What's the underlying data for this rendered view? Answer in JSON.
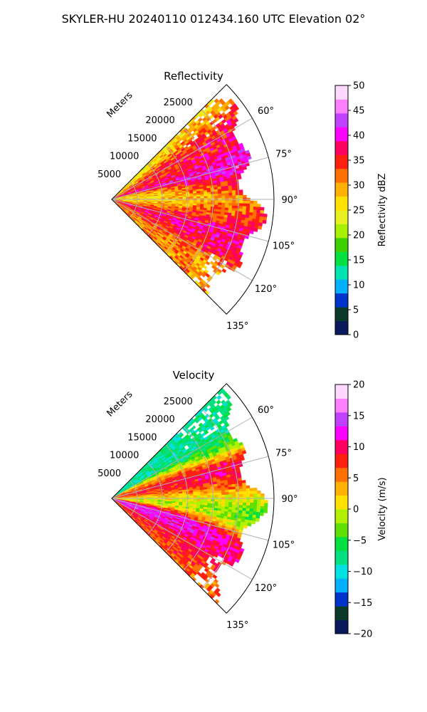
{
  "figure_title": "SKYLER-HU  20240110  012434.160 UTC Elevation 02°",
  "range_unit_label": "Meters",
  "colors": {
    "grid": "#b0b0b0",
    "axis": "#000000",
    "background": "#ffffff"
  },
  "chart_data": [
    {
      "type": "heatmap",
      "subtype": "polar-sector (PPI radar scan)",
      "title": "Reflectivity",
      "theta_ticks_deg": [
        60,
        75,
        90,
        105,
        120,
        135
      ],
      "theta_tick_labels": [
        "60°",
        "75°",
        "90°",
        "105°",
        "120°",
        "135°"
      ],
      "theta_range_deg": [
        45,
        135
      ],
      "r_ticks": [
        5000,
        10000,
        15000,
        20000,
        25000
      ],
      "r_tick_labels": [
        "5000",
        "10000",
        "15000",
        "20000",
        "25000"
      ],
      "r_max": 32000,
      "grid": true,
      "colorbar": {
        "label": "Reflectivity dBZ",
        "min": 0,
        "max": 50,
        "ticks": [
          0,
          5,
          10,
          15,
          20,
          25,
          30,
          35,
          40,
          45,
          50
        ],
        "tick_labels": [
          "0",
          "5",
          "10",
          "15",
          "20",
          "25",
          "30",
          "35",
          "40",
          "45",
          "50"
        ],
        "colorscale": [
          "#0a1a5c",
          "#0b3a2a",
          "#0033cc",
          "#00b0ff",
          "#00e0b0",
          "#00e040",
          "#40d000",
          "#a8f000",
          "#e8f020",
          "#ffe000",
          "#ffb000",
          "#ff7000",
          "#ff2010",
          "#ff0060",
          "#ff00ff",
          "#c040ff",
          "#ff80ff",
          "#ffd8ff"
        ]
      },
      "field_description": "Sector mostly 25-35 dBZ with band of 35-45 dBZ near ranges 20000-27000 m; light 15-25 dBZ near north edge",
      "values": [
        {
          "azimuth": 50,
          "range": 22000,
          "value": 25
        },
        {
          "azimuth": 55,
          "range": 25000,
          "value": 38
        },
        {
          "azimuth": 60,
          "range": 26000,
          "value": 37
        },
        {
          "azimuth": 65,
          "range": 22000,
          "value": 33
        },
        {
          "azimuth": 70,
          "range": 24000,
          "value": 41
        },
        {
          "azimuth": 75,
          "range": 26000,
          "value": 42
        },
        {
          "azimuth": 80,
          "range": 25000,
          "value": 40
        },
        {
          "azimuth": 85,
          "range": 18000,
          "value": 29
        },
        {
          "azimuth": 90,
          "range": 10000,
          "value": 26
        },
        {
          "azimuth": 95,
          "range": 15000,
          "value": 30
        },
        {
          "azimuth": 100,
          "range": 22000,
          "value": 35
        },
        {
          "azimuth": 105,
          "range": 18000,
          "value": 37
        },
        {
          "azimuth": 110,
          "range": 20000,
          "value": 40
        },
        {
          "azimuth": 115,
          "range": 15000,
          "value": 36
        },
        {
          "azimuth": 120,
          "range": 12000,
          "value": 33
        },
        {
          "azimuth": 125,
          "range": 20000,
          "value": 30
        },
        {
          "azimuth": 130,
          "range": 14000,
          "value": 31
        }
      ]
    },
    {
      "type": "heatmap",
      "subtype": "polar-sector (PPI radar scan)",
      "title": "Velocity",
      "theta_ticks_deg": [
        60,
        75,
        90,
        105,
        120,
        135
      ],
      "theta_tick_labels": [
        "60°",
        "75°",
        "90°",
        "105°",
        "120°",
        "135°"
      ],
      "theta_range_deg": [
        45,
        135
      ],
      "r_ticks": [
        5000,
        10000,
        15000,
        20000,
        25000
      ],
      "r_tick_labels": [
        "5000",
        "10000",
        "15000",
        "20000",
        "25000"
      ],
      "r_max": 32000,
      "grid": true,
      "colorbar": {
        "label": "Velocity (m/s)",
        "min": -20,
        "max": 20,
        "ticks": [
          -20,
          -15,
          -10,
          -5,
          0,
          5,
          10,
          15,
          20
        ],
        "tick_labels": [
          "−20",
          "−15",
          "−10",
          "−5",
          "0",
          "5",
          "10",
          "15",
          "20"
        ],
        "colorscale": [
          "#0a1a5c",
          "#0b3a2a",
          "#0033cc",
          "#00b0ff",
          "#00e0e0",
          "#00e080",
          "#00e040",
          "#60e000",
          "#b0f000",
          "#ffe000",
          "#ffb000",
          "#ff7000",
          "#ff2010",
          "#ff0060",
          "#ff00ff",
          "#c040ff",
          "#ff80ff",
          "#ffd8ff"
        ]
      },
      "field_description": "Inbound -10 to -5 m/s near northern edge, outbound 5-15 m/s along 75-90° band and south of 105°, near zero along 90-100°",
      "values": [
        {
          "azimuth": 50,
          "range": 20000,
          "value": -8
        },
        {
          "azimuth": 55,
          "range": 26000,
          "value": -6
        },
        {
          "azimuth": 60,
          "range": 20000,
          "value": -10
        },
        {
          "azimuth": 65,
          "range": 22000,
          "value": -4
        },
        {
          "azimuth": 70,
          "range": 14000,
          "value": 6
        },
        {
          "azimuth": 75,
          "range": 22000,
          "value": 12
        },
        {
          "azimuth": 80,
          "range": 15000,
          "value": 9
        },
        {
          "azimuth": 85,
          "range": 20000,
          "value": 5
        },
        {
          "azimuth": 90,
          "range": 15000,
          "value": 0
        },
        {
          "azimuth": 95,
          "range": 20000,
          "value": -2
        },
        {
          "azimuth": 100,
          "range": 24000,
          "value": -6
        },
        {
          "azimuth": 105,
          "range": 18000,
          "value": 12
        },
        {
          "azimuth": 110,
          "range": 14000,
          "value": 14
        },
        {
          "azimuth": 115,
          "range": 22000,
          "value": 10
        },
        {
          "azimuth": 120,
          "range": 16000,
          "value": 9
        },
        {
          "azimuth": 125,
          "range": 20000,
          "value": 8
        },
        {
          "azimuth": 130,
          "range": 22000,
          "value": 6
        }
      ]
    }
  ]
}
